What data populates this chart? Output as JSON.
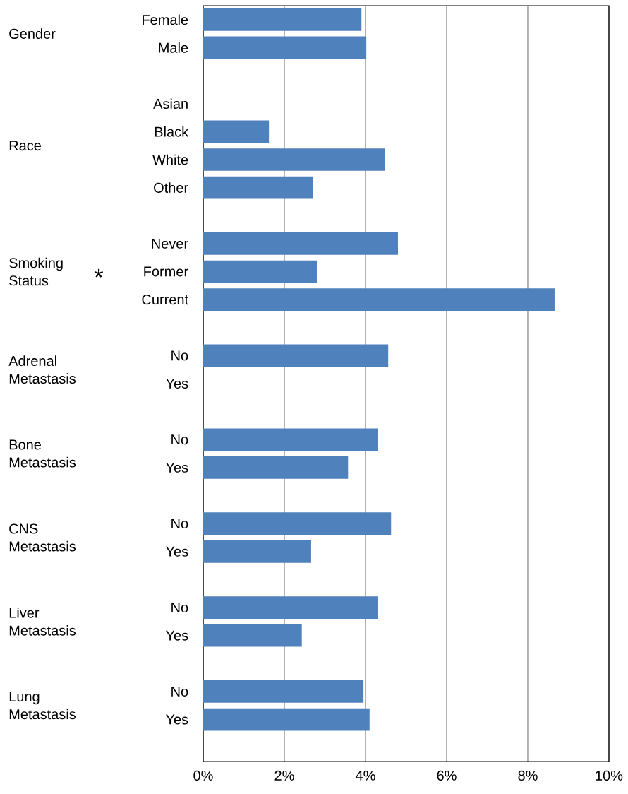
{
  "chart_data": {
    "type": "bar",
    "orientation": "horizontal",
    "color": "#4f81bd",
    "categories": [
      "Female",
      "Male",
      null,
      "Asian",
      "Black",
      "White",
      "Other",
      null,
      "Never",
      "Former",
      "Current",
      null,
      "No",
      "Yes",
      null,
      "No",
      "Yes",
      null,
      "No",
      "Yes",
      null,
      "No",
      "Yes",
      null,
      "No",
      "Yes"
    ],
    "values": [
      3.9,
      4.02,
      null,
      null,
      1.62,
      4.47,
      2.7,
      null,
      4.8,
      2.8,
      8.66,
      null,
      4.56,
      null,
      null,
      4.31,
      3.57,
      null,
      4.63,
      2.66,
      null,
      4.3,
      2.43,
      null,
      3.95,
      4.1
    ],
    "xlim": [
      0,
      10
    ],
    "xticks": [
      {
        "value": 0,
        "label": "0%"
      },
      {
        "value": 2,
        "label": "2%"
      },
      {
        "value": 4,
        "label": "4%"
      },
      {
        "value": 6,
        "label": "6%"
      },
      {
        "value": 8,
        "label": "8%"
      },
      {
        "value": 10,
        "label": "10%"
      }
    ],
    "grid": "x",
    "annotations": [
      "Gender",
      "Race",
      "Smoking Status",
      "Adrenal Metastasis",
      "Bone Metastasis",
      "CNS Metastasis",
      "Liver Metastasis",
      "Lung Metastasis",
      "*"
    ]
  }
}
